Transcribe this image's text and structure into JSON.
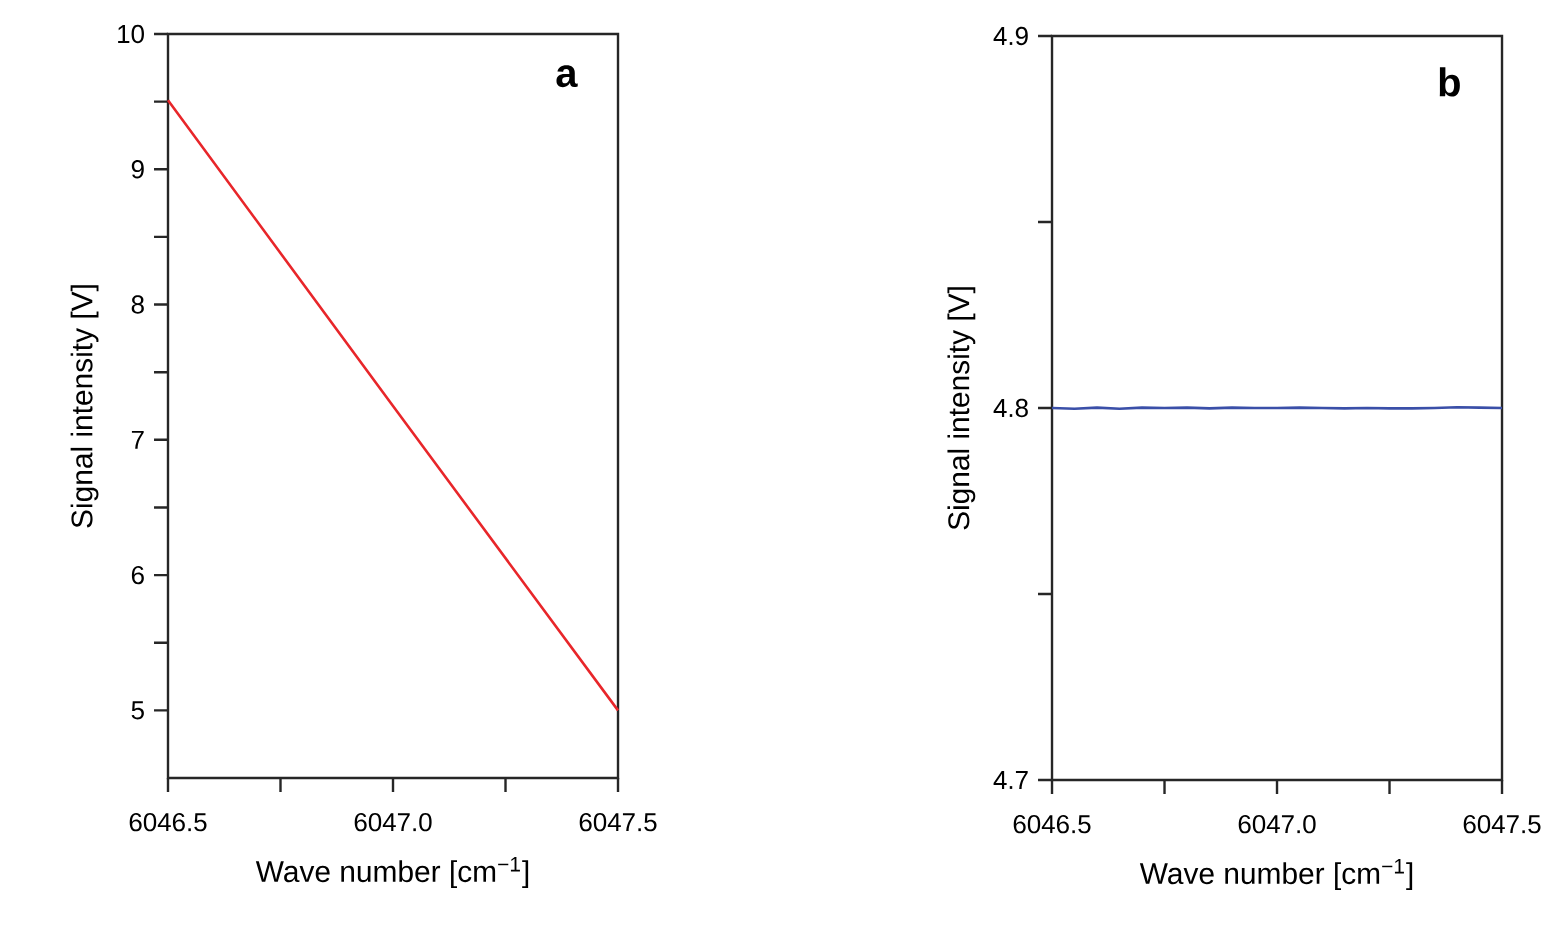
{
  "chart_data": [
    {
      "type": "line",
      "xlabel": "Wave number [cm$^{−1}$]",
      "ylabel": "Signal intensity [V]",
      "annotations": [
        "a"
      ],
      "x": [
        6046.5,
        6047.0,
        6047.5
      ],
      "series": [
        {
          "color": "#e8262a",
          "values": [
            9.51,
            7.25,
            5.0
          ]
        }
      ],
      "xlim": [
        6046.5,
        6047.5
      ],
      "ylim": [
        4.5,
        10
      ],
      "xticks": [
        {
          "value": 6046.5,
          "label": "6046.5"
        },
        {
          "value": 6046.75,
          "label": null
        },
        {
          "value": 6047.0,
          "label": "6047.0"
        },
        {
          "value": 6047.25,
          "label": null
        },
        {
          "value": 6047.5,
          "label": "6047.5"
        }
      ],
      "yticks": [
        5,
        {
          "value": 5.5,
          "label": null
        },
        6,
        {
          "value": 6.5,
          "label": null
        },
        7,
        {
          "value": 7.5,
          "label": null
        },
        8,
        {
          "value": 8.5,
          "label": null
        },
        9,
        {
          "value": 9.5,
          "label": null
        },
        10
      ]
    },
    {
      "type": "line",
      "xlabel": "Wave number [cm$^{−1}$]",
      "ylabel": "Signal intensity [V]",
      "annotations": [
        "b"
      ],
      "x": [
        6046.5,
        6046.55,
        6046.6,
        6046.65,
        6046.7,
        6046.75,
        6046.8,
        6046.85,
        6046.9,
        6046.95,
        6047.0,
        6047.05,
        6047.1,
        6047.15,
        6047.2,
        6047.25,
        6047.3,
        6047.35,
        6047.4,
        6047.45,
        6047.5
      ],
      "series": [
        {
          "color": "#3a4fa8",
          "values": [
            4.8,
            4.7998,
            4.8001,
            4.7998,
            4.8001,
            4.8,
            4.8001,
            4.7999,
            4.8001,
            4.8,
            4.8,
            4.8001,
            4.8,
            4.7999,
            4.8,
            4.7999,
            4.7999,
            4.8,
            4.8002,
            4.8001,
            4.8
          ]
        }
      ],
      "xlim": [
        6046.5,
        6047.5
      ],
      "ylim": [
        4.7,
        4.9
      ],
      "xticks": [
        {
          "value": 6046.5,
          "label": "6046.5"
        },
        {
          "value": 6046.75,
          "label": null
        },
        {
          "value": 6047.0,
          "label": "6047.0"
        },
        {
          "value": 6047.25,
          "label": null
        },
        {
          "value": 6047.5,
          "label": "6047.5"
        }
      ],
      "yticks": [
        4.7,
        {
          "value": 4.75,
          "label": null
        },
        4.8,
        {
          "value": 4.85,
          "label": null
        },
        4.9
      ]
    }
  ]
}
